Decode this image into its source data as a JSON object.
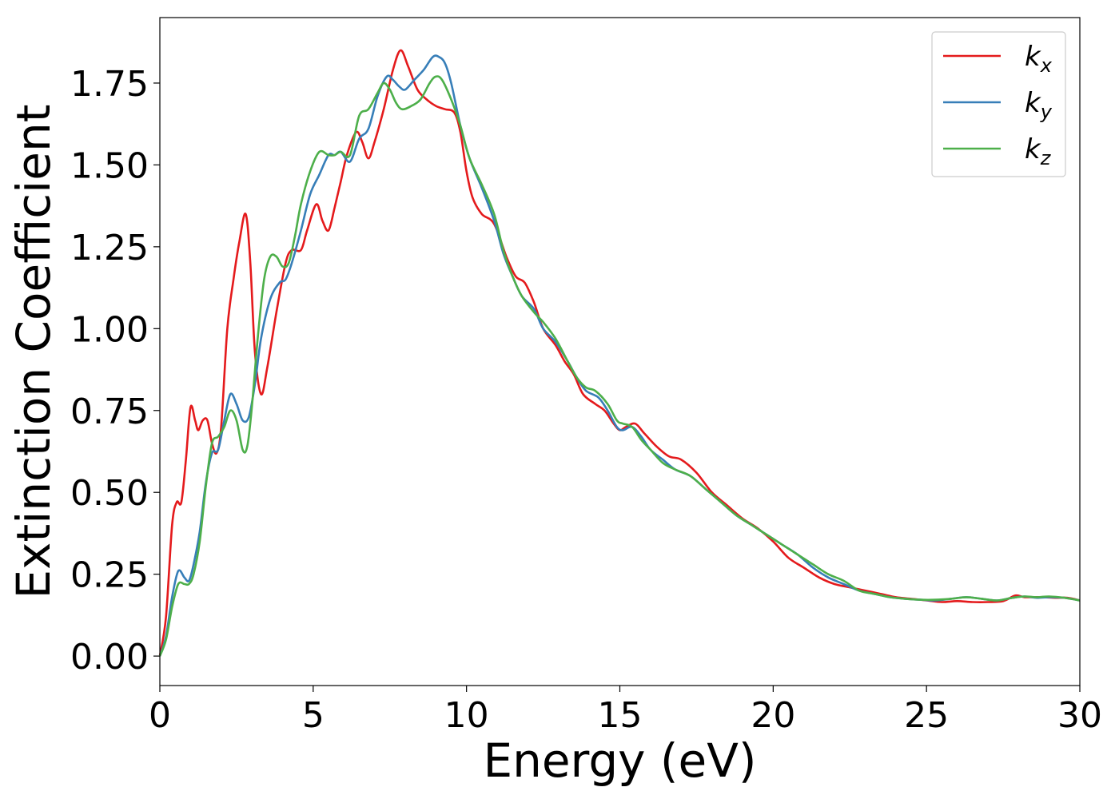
{
  "chart_data": {
    "type": "line",
    "title": "",
    "xlabel": "Energy (eV)",
    "ylabel": "Extinction Coefficient",
    "xlim": [
      0,
      30
    ],
    "ylim": [
      -0.09,
      1.95
    ],
    "xticks": [
      0,
      5,
      10,
      15,
      20,
      25,
      30
    ],
    "xtick_labels": [
      "0",
      "5",
      "10",
      "15",
      "20",
      "25",
      "30"
    ],
    "yticks": [
      0.0,
      0.25,
      0.5,
      0.75,
      1.0,
      1.25,
      1.5,
      1.75
    ],
    "ytick_labels": [
      "0.00",
      "0.25",
      "0.50",
      "0.75",
      "1.00",
      "1.25",
      "1.50",
      "1.75"
    ],
    "grid": false,
    "legend_position": "top-right",
    "series": [
      {
        "name": "kx",
        "legend_base": "k",
        "legend_sub": "x",
        "color": "#e41a1c",
        "points": [
          [
            0,
            0
          ],
          [
            0.2,
            0.12
          ],
          [
            0.4,
            0.4
          ],
          [
            0.55,
            0.47
          ],
          [
            0.7,
            0.47
          ],
          [
            0.85,
            0.6
          ],
          [
            1.0,
            0.76
          ],
          [
            1.15,
            0.72
          ],
          [
            1.25,
            0.69
          ],
          [
            1.4,
            0.72
          ],
          [
            1.55,
            0.72
          ],
          [
            1.7,
            0.65
          ],
          [
            1.85,
            0.62
          ],
          [
            2.0,
            0.7
          ],
          [
            2.2,
            1.0
          ],
          [
            2.4,
            1.15
          ],
          [
            2.6,
            1.27
          ],
          [
            2.8,
            1.35
          ],
          [
            2.95,
            1.2
          ],
          [
            3.1,
            0.93
          ],
          [
            3.3,
            0.8
          ],
          [
            3.5,
            0.88
          ],
          [
            3.8,
            1.05
          ],
          [
            4.1,
            1.2
          ],
          [
            4.3,
            1.24
          ],
          [
            4.6,
            1.24
          ],
          [
            4.8,
            1.3
          ],
          [
            5.1,
            1.38
          ],
          [
            5.3,
            1.33
          ],
          [
            5.5,
            1.3
          ],
          [
            5.7,
            1.37
          ],
          [
            5.9,
            1.45
          ],
          [
            6.1,
            1.53
          ],
          [
            6.4,
            1.6
          ],
          [
            6.6,
            1.57
          ],
          [
            6.8,
            1.52
          ],
          [
            7.0,
            1.57
          ],
          [
            7.3,
            1.67
          ],
          [
            7.6,
            1.79
          ],
          [
            7.85,
            1.85
          ],
          [
            8.1,
            1.8
          ],
          [
            8.4,
            1.73
          ],
          [
            8.7,
            1.7
          ],
          [
            9.0,
            1.68
          ],
          [
            9.3,
            1.67
          ],
          [
            9.6,
            1.66
          ],
          [
            9.8,
            1.6
          ],
          [
            10.0,
            1.48
          ],
          [
            10.2,
            1.4
          ],
          [
            10.5,
            1.35
          ],
          [
            10.9,
            1.32
          ],
          [
            11.3,
            1.22
          ],
          [
            11.6,
            1.16
          ],
          [
            11.9,
            1.14
          ],
          [
            12.2,
            1.08
          ],
          [
            12.5,
            1.0
          ],
          [
            12.9,
            0.95
          ],
          [
            13.2,
            0.9
          ],
          [
            13.5,
            0.86
          ],
          [
            13.8,
            0.8
          ],
          [
            14.2,
            0.77
          ],
          [
            14.5,
            0.75
          ],
          [
            14.8,
            0.71
          ],
          [
            15.0,
            0.69
          ],
          [
            15.2,
            0.7
          ],
          [
            15.5,
            0.71
          ],
          [
            15.8,
            0.68
          ],
          [
            16.2,
            0.64
          ],
          [
            16.6,
            0.61
          ],
          [
            17.0,
            0.6
          ],
          [
            17.5,
            0.56
          ],
          [
            18.0,
            0.5
          ],
          [
            18.5,
            0.46
          ],
          [
            19.0,
            0.42
          ],
          [
            19.5,
            0.39
          ],
          [
            20.0,
            0.35
          ],
          [
            20.5,
            0.3
          ],
          [
            21.0,
            0.27
          ],
          [
            21.5,
            0.24
          ],
          [
            22.0,
            0.22
          ],
          [
            22.5,
            0.21
          ],
          [
            23.0,
            0.2
          ],
          [
            23.5,
            0.19
          ],
          [
            24.0,
            0.18
          ],
          [
            24.5,
            0.175
          ],
          [
            25.0,
            0.17
          ],
          [
            25.5,
            0.165
          ],
          [
            26.0,
            0.168
          ],
          [
            26.5,
            0.165
          ],
          [
            27.0,
            0.165
          ],
          [
            27.5,
            0.168
          ],
          [
            27.9,
            0.185
          ],
          [
            28.2,
            0.18
          ],
          [
            28.7,
            0.18
          ],
          [
            29.2,
            0.178
          ],
          [
            29.6,
            0.178
          ],
          [
            30.0,
            0.17
          ]
        ]
      },
      {
        "name": "ky",
        "legend_base": "k",
        "legend_sub": "y",
        "color": "#377eb8",
        "points": [
          [
            0,
            0
          ],
          [
            0.2,
            0.06
          ],
          [
            0.4,
            0.18
          ],
          [
            0.6,
            0.26
          ],
          [
            0.8,
            0.24
          ],
          [
            0.95,
            0.23
          ],
          [
            1.1,
            0.28
          ],
          [
            1.3,
            0.38
          ],
          [
            1.5,
            0.53
          ],
          [
            1.7,
            0.62
          ],
          [
            1.9,
            0.63
          ],
          [
            2.1,
            0.72
          ],
          [
            2.3,
            0.8
          ],
          [
            2.5,
            0.77
          ],
          [
            2.7,
            0.72
          ],
          [
            2.9,
            0.73
          ],
          [
            3.1,
            0.83
          ],
          [
            3.3,
            0.97
          ],
          [
            3.6,
            1.09
          ],
          [
            3.9,
            1.14
          ],
          [
            4.1,
            1.15
          ],
          [
            4.3,
            1.2
          ],
          [
            4.6,
            1.3
          ],
          [
            4.9,
            1.41
          ],
          [
            5.2,
            1.47
          ],
          [
            5.5,
            1.53
          ],
          [
            5.7,
            1.53
          ],
          [
            5.9,
            1.54
          ],
          [
            6.2,
            1.51
          ],
          [
            6.5,
            1.58
          ],
          [
            6.8,
            1.61
          ],
          [
            7.1,
            1.71
          ],
          [
            7.4,
            1.77
          ],
          [
            7.6,
            1.76
          ],
          [
            7.8,
            1.74
          ],
          [
            8.0,
            1.73
          ],
          [
            8.3,
            1.76
          ],
          [
            8.6,
            1.79
          ],
          [
            8.9,
            1.83
          ],
          [
            9.1,
            1.83
          ],
          [
            9.3,
            1.81
          ],
          [
            9.5,
            1.75
          ],
          [
            9.8,
            1.62
          ],
          [
            10.1,
            1.52
          ],
          [
            10.5,
            1.43
          ],
          [
            10.9,
            1.33
          ],
          [
            11.2,
            1.23
          ],
          [
            11.5,
            1.16
          ],
          [
            11.8,
            1.1
          ],
          [
            12.2,
            1.06
          ],
          [
            12.5,
            1.0
          ],
          [
            12.9,
            0.96
          ],
          [
            13.3,
            0.9
          ],
          [
            13.6,
            0.85
          ],
          [
            13.9,
            0.81
          ],
          [
            14.3,
            0.79
          ],
          [
            14.6,
            0.75
          ],
          [
            14.9,
            0.7
          ],
          [
            15.1,
            0.69
          ],
          [
            15.4,
            0.7
          ],
          [
            15.7,
            0.67
          ],
          [
            16.0,
            0.63
          ],
          [
            16.4,
            0.6
          ],
          [
            16.8,
            0.57
          ],
          [
            17.3,
            0.55
          ],
          [
            17.8,
            0.51
          ],
          [
            18.3,
            0.47
          ],
          [
            18.8,
            0.43
          ],
          [
            19.3,
            0.4
          ],
          [
            19.8,
            0.37
          ],
          [
            20.3,
            0.34
          ],
          [
            20.8,
            0.31
          ],
          [
            21.3,
            0.27
          ],
          [
            21.8,
            0.24
          ],
          [
            22.3,
            0.22
          ],
          [
            22.8,
            0.2
          ],
          [
            23.3,
            0.19
          ],
          [
            23.8,
            0.18
          ],
          [
            24.3,
            0.175
          ],
          [
            24.8,
            0.172
          ],
          [
            25.3,
            0.17
          ],
          [
            25.8,
            0.175
          ],
          [
            26.3,
            0.18
          ],
          [
            26.8,
            0.175
          ],
          [
            27.3,
            0.17
          ],
          [
            27.8,
            0.178
          ],
          [
            28.2,
            0.182
          ],
          [
            28.6,
            0.178
          ],
          [
            29.0,
            0.18
          ],
          [
            29.5,
            0.178
          ],
          [
            30.0,
            0.17
          ]
        ]
      },
      {
        "name": "kz",
        "legend_base": "k",
        "legend_sub": "z",
        "color": "#4daf4a",
        "points": [
          [
            0,
            0
          ],
          [
            0.2,
            0.05
          ],
          [
            0.4,
            0.15
          ],
          [
            0.6,
            0.22
          ],
          [
            0.8,
            0.22
          ],
          [
            0.95,
            0.22
          ],
          [
            1.1,
            0.25
          ],
          [
            1.3,
            0.35
          ],
          [
            1.5,
            0.52
          ],
          [
            1.7,
            0.65
          ],
          [
            1.9,
            0.67
          ],
          [
            2.1,
            0.7
          ],
          [
            2.3,
            0.75
          ],
          [
            2.5,
            0.72
          ],
          [
            2.7,
            0.63
          ],
          [
            2.85,
            0.64
          ],
          [
            3.0,
            0.76
          ],
          [
            3.2,
            0.98
          ],
          [
            3.4,
            1.15
          ],
          [
            3.6,
            1.22
          ],
          [
            3.8,
            1.22
          ],
          [
            4.0,
            1.19
          ],
          [
            4.2,
            1.2
          ],
          [
            4.4,
            1.28
          ],
          [
            4.6,
            1.38
          ],
          [
            4.9,
            1.48
          ],
          [
            5.2,
            1.54
          ],
          [
            5.5,
            1.53
          ],
          [
            5.7,
            1.53
          ],
          [
            5.9,
            1.54
          ],
          [
            6.2,
            1.53
          ],
          [
            6.5,
            1.65
          ],
          [
            6.8,
            1.67
          ],
          [
            7.1,
            1.72
          ],
          [
            7.3,
            1.75
          ],
          [
            7.5,
            1.73
          ],
          [
            7.7,
            1.69
          ],
          [
            7.9,
            1.67
          ],
          [
            8.2,
            1.68
          ],
          [
            8.5,
            1.7
          ],
          [
            8.8,
            1.75
          ],
          [
            9.0,
            1.77
          ],
          [
            9.2,
            1.76
          ],
          [
            9.5,
            1.7
          ],
          [
            9.8,
            1.62
          ],
          [
            10.1,
            1.52
          ],
          [
            10.5,
            1.44
          ],
          [
            10.9,
            1.35
          ],
          [
            11.2,
            1.24
          ],
          [
            11.5,
            1.16
          ],
          [
            11.8,
            1.1
          ],
          [
            12.2,
            1.05
          ],
          [
            12.5,
            1.02
          ],
          [
            12.9,
            0.97
          ],
          [
            13.3,
            0.9
          ],
          [
            13.6,
            0.85
          ],
          [
            13.9,
            0.82
          ],
          [
            14.2,
            0.81
          ],
          [
            14.6,
            0.77
          ],
          [
            14.9,
            0.72
          ],
          [
            15.1,
            0.71
          ],
          [
            15.4,
            0.7
          ],
          [
            15.7,
            0.66
          ],
          [
            16.0,
            0.63
          ],
          [
            16.4,
            0.59
          ],
          [
            16.8,
            0.57
          ],
          [
            17.3,
            0.55
          ],
          [
            17.8,
            0.51
          ],
          [
            18.3,
            0.47
          ],
          [
            18.8,
            0.43
          ],
          [
            19.3,
            0.4
          ],
          [
            19.8,
            0.37
          ],
          [
            20.3,
            0.34
          ],
          [
            20.8,
            0.31
          ],
          [
            21.3,
            0.28
          ],
          [
            21.8,
            0.25
          ],
          [
            22.3,
            0.23
          ],
          [
            22.8,
            0.2
          ],
          [
            23.3,
            0.19
          ],
          [
            23.8,
            0.18
          ],
          [
            24.3,
            0.175
          ],
          [
            24.8,
            0.172
          ],
          [
            25.3,
            0.172
          ],
          [
            25.8,
            0.175
          ],
          [
            26.3,
            0.18
          ],
          [
            26.8,
            0.175
          ],
          [
            27.3,
            0.17
          ],
          [
            27.8,
            0.178
          ],
          [
            28.2,
            0.182
          ],
          [
            28.6,
            0.18
          ],
          [
            29.0,
            0.182
          ],
          [
            29.5,
            0.178
          ],
          [
            30.0,
            0.17
          ]
        ]
      }
    ]
  }
}
